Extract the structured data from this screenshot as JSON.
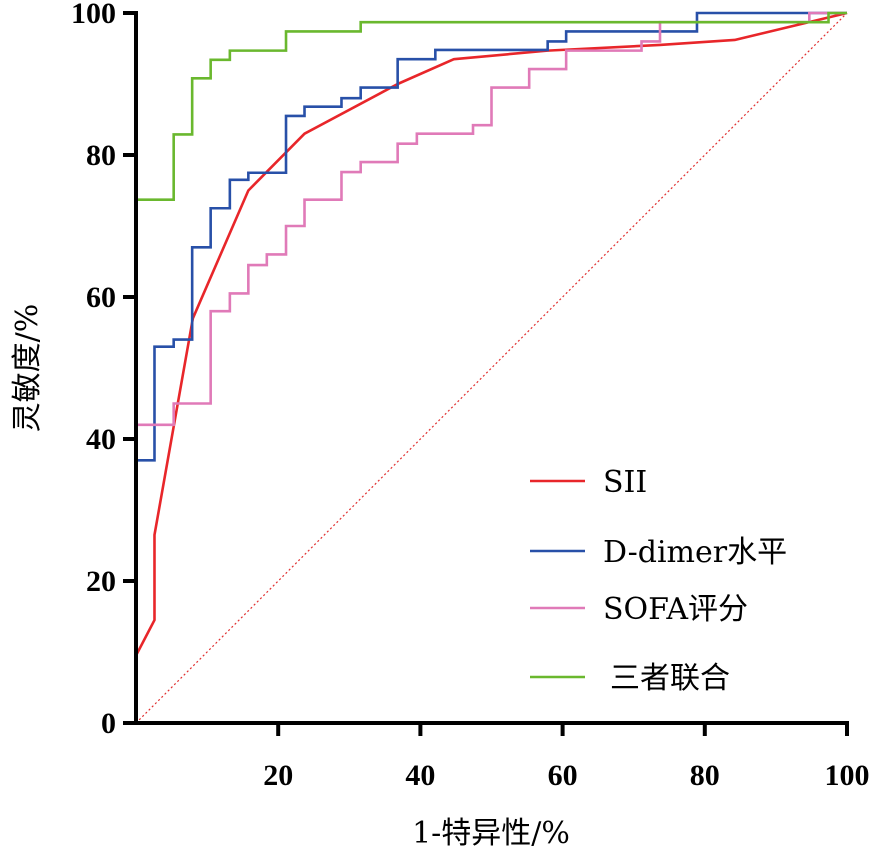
{
  "chart_data": {
    "type": "line",
    "title": "",
    "xlabel": "1-特异性/%",
    "ylabel": "灵敏度/%",
    "xlim": [
      0,
      100
    ],
    "ylim": [
      0,
      100
    ],
    "x_ticks": [
      "20",
      "40",
      "60",
      "80",
      "100"
    ],
    "y_ticks": [
      "0",
      "20",
      "40",
      "60",
      "80",
      "100"
    ],
    "legend_position": "bottom-right",
    "reference_line": {
      "from": [
        0,
        0
      ],
      "to": [
        100,
        100
      ],
      "color": "#e03030",
      "style": "dotted"
    },
    "series": [
      {
        "name": "SII",
        "color": "#e8262a",
        "step": false,
        "points": [
          [
            0,
            0
          ],
          [
            0,
            9.5
          ],
          [
            2.6,
            14.5
          ],
          [
            2.6,
            26.5
          ],
          [
            8,
            57
          ],
          [
            15.8,
            75
          ],
          [
            23.7,
            83
          ],
          [
            36.8,
            90
          ],
          [
            44.7,
            93.5
          ],
          [
            57.9,
            94.7
          ],
          [
            73.7,
            95.5
          ],
          [
            84.2,
            96.2
          ],
          [
            100,
            100
          ]
        ]
      },
      {
        "name": "D-dimer水平",
        "color": "#2850a8",
        "step": true,
        "points": [
          [
            0,
            0
          ],
          [
            0,
            37
          ],
          [
            2.6,
            37
          ],
          [
            2.6,
            53
          ],
          [
            5.3,
            53
          ],
          [
            5.3,
            54
          ],
          [
            7.9,
            54
          ],
          [
            7.9,
            67
          ],
          [
            10.5,
            67
          ],
          [
            10.5,
            72.5
          ],
          [
            13.2,
            72.5
          ],
          [
            13.2,
            76.5
          ],
          [
            15.8,
            76.5
          ],
          [
            15.8,
            77.5
          ],
          [
            21.1,
            77.5
          ],
          [
            21.1,
            85.5
          ],
          [
            23.7,
            85.5
          ],
          [
            23.7,
            86.8
          ],
          [
            28.9,
            86.8
          ],
          [
            28.9,
            88
          ],
          [
            31.6,
            88
          ],
          [
            31.6,
            89.5
          ],
          [
            36.8,
            89.5
          ],
          [
            36.8,
            93.5
          ],
          [
            42.1,
            93.5
          ],
          [
            42.1,
            94.8
          ],
          [
            57.9,
            94.8
          ],
          [
            57.9,
            96
          ],
          [
            60.5,
            96
          ],
          [
            60.5,
            97.4
          ],
          [
            78.9,
            97.4
          ],
          [
            78.9,
            100
          ],
          [
            100,
            100
          ]
        ]
      },
      {
        "name": "SOFA评分",
        "color": "#e07ab8",
        "step": true,
        "points": [
          [
            0,
            0
          ],
          [
            0,
            42
          ],
          [
            5.3,
            42
          ],
          [
            5.3,
            45
          ],
          [
            10.5,
            45
          ],
          [
            10.5,
            58
          ],
          [
            13.2,
            58
          ],
          [
            13.2,
            60.5
          ],
          [
            15.8,
            60.5
          ],
          [
            15.8,
            64.5
          ],
          [
            18.4,
            64.5
          ],
          [
            18.4,
            66
          ],
          [
            21.1,
            66
          ],
          [
            21.1,
            70
          ],
          [
            23.7,
            70
          ],
          [
            23.7,
            73.7
          ],
          [
            28.9,
            73.7
          ],
          [
            28.9,
            77.6
          ],
          [
            31.6,
            77.6
          ],
          [
            31.6,
            79
          ],
          [
            36.8,
            79
          ],
          [
            36.8,
            81.6
          ],
          [
            39.5,
            81.6
          ],
          [
            39.5,
            83
          ],
          [
            47.4,
            83
          ],
          [
            47.4,
            84.2
          ],
          [
            50,
            84.2
          ],
          [
            50,
            89.5
          ],
          [
            55.3,
            89.5
          ],
          [
            55.3,
            92.1
          ],
          [
            60.5,
            92.1
          ],
          [
            60.5,
            94.7
          ],
          [
            71.1,
            94.7
          ],
          [
            71.1,
            96
          ],
          [
            73.7,
            96
          ],
          [
            73.7,
            98.7
          ],
          [
            94.7,
            98.7
          ],
          [
            94.7,
            100
          ],
          [
            100,
            100
          ]
        ]
      },
      {
        "name": "三者联合",
        "color": "#6ab82e",
        "step": true,
        "points": [
          [
            0,
            0
          ],
          [
            0,
            73.7
          ],
          [
            5.3,
            73.7
          ],
          [
            5.3,
            82.9
          ],
          [
            7.9,
            82.9
          ],
          [
            7.9,
            90.8
          ],
          [
            10.5,
            90.8
          ],
          [
            10.5,
            93.4
          ],
          [
            13.2,
            93.4
          ],
          [
            13.2,
            94.7
          ],
          [
            21.1,
            94.7
          ],
          [
            21.1,
            97.4
          ],
          [
            31.6,
            97.4
          ],
          [
            31.6,
            98.7
          ],
          [
            97.4,
            98.7
          ],
          [
            97.4,
            100
          ],
          [
            100,
            100
          ]
        ]
      }
    ]
  }
}
